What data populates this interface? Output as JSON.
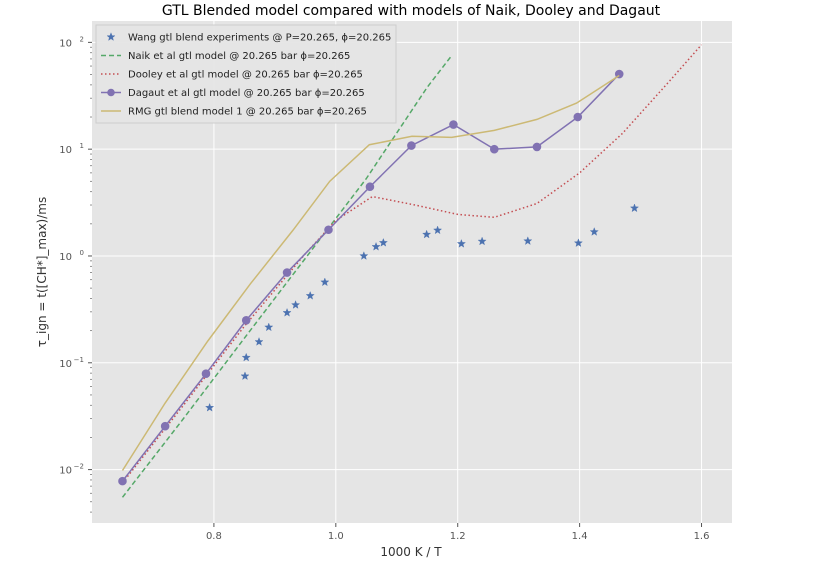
{
  "chart_data": {
    "type": "line",
    "title": "GTL Blended model compared with models of Naik, Dooley and Dagaut",
    "xlabel": "1000 K / T",
    "ylabel": "τ_ign = t([CH*]_max)/ms",
    "xlim": [
      0.6,
      1.65
    ],
    "ylim_log10": [
      -2.5,
      2.2
    ],
    "yscale": "log",
    "grid": true,
    "legend_position": "top-left",
    "x_ticks": [
      {
        "value": 0.8,
        "label": "0.8"
      },
      {
        "value": 1.0,
        "label": "1.0"
      },
      {
        "value": 1.2,
        "label": "1.2"
      },
      {
        "value": 1.4,
        "label": "1.4"
      },
      {
        "value": 1.6,
        "label": "1.6"
      }
    ],
    "y_ticks": [
      {
        "exp": -2,
        "base": "10",
        "sup": "−2"
      },
      {
        "exp": -1,
        "base": "10",
        "sup": "−1"
      },
      {
        "exp": 0,
        "base": "10",
        "sup": "0"
      },
      {
        "exp": 1,
        "base": "10",
        "sup": "1"
      },
      {
        "exp": 2,
        "base": "10",
        "sup": "2"
      }
    ],
    "series": [
      {
        "name": "Wang gtl blend experiments @ P=20.265, ϕ=20.265",
        "style": "scatter-star",
        "color": "#4c72b0",
        "x": [
          0.793,
          0.851,
          0.853,
          0.874,
          0.89,
          0.92,
          0.934,
          0.958,
          0.982,
          1.046,
          1.066,
          1.078,
          1.149,
          1.167,
          1.206,
          1.24,
          1.315,
          1.398,
          1.424,
          1.49
        ],
        "y": [
          0.038,
          0.075,
          0.112,
          0.157,
          0.215,
          0.294,
          0.348,
          0.424,
          0.568,
          1.0,
          1.22,
          1.33,
          1.59,
          1.74,
          1.3,
          1.37,
          1.38,
          1.32,
          1.68,
          2.8
        ]
      },
      {
        "name": "Naik et al gtl model @ 20.265 bar ϕ=20.265",
        "style": "dashed",
        "color": "#55a868",
        "x": [
          0.65,
          0.75,
          0.85,
          0.95,
          1.05,
          1.15,
          1.19
        ],
        "y": [
          0.0055,
          0.03,
          0.17,
          0.95,
          5.3,
          38,
          75
        ]
      },
      {
        "name": "Dooley et al gtl model @ 20.265 bar ϕ=20.265",
        "style": "dotted",
        "color": "#c44e52",
        "x": [
          0.65,
          0.75,
          0.85,
          0.95,
          1.0,
          1.06,
          1.13,
          1.2,
          1.26,
          1.33,
          1.4,
          1.47,
          1.55,
          1.6
        ],
        "y": [
          0.0075,
          0.04,
          0.22,
          1.05,
          2.15,
          3.6,
          3.0,
          2.45,
          2.3,
          3.1,
          6.0,
          14,
          45,
          95
        ]
      },
      {
        "name": "Dagaut et al gtl model @ 20.265 bar ϕ=20.265",
        "style": "line-marker",
        "color": "#8172b2",
        "x": [
          0.65,
          0.72,
          0.787,
          0.853,
          0.92,
          0.988,
          1.056,
          1.124,
          1.193,
          1.26,
          1.33,
          1.397,
          1.465
        ],
        "y": [
          0.0078,
          0.0255,
          0.079,
          0.25,
          0.7,
          1.76,
          4.45,
          10.8,
          17.0,
          10.0,
          10.5,
          20.0,
          50.5
        ]
      },
      {
        "name": "RMG gtl blend model 1 @ 20.265 bar ϕ=20.265",
        "style": "solid",
        "color": "#ccb974",
        "x": [
          0.65,
          0.72,
          0.79,
          0.86,
          0.93,
          0.99,
          1.055,
          1.125,
          1.19,
          1.26,
          1.33,
          1.395,
          1.465
        ],
        "y": [
          0.0098,
          0.042,
          0.16,
          0.55,
          1.75,
          5.0,
          11.0,
          13.2,
          12.9,
          15.0,
          19.0,
          27.0,
          49.0
        ]
      }
    ]
  }
}
